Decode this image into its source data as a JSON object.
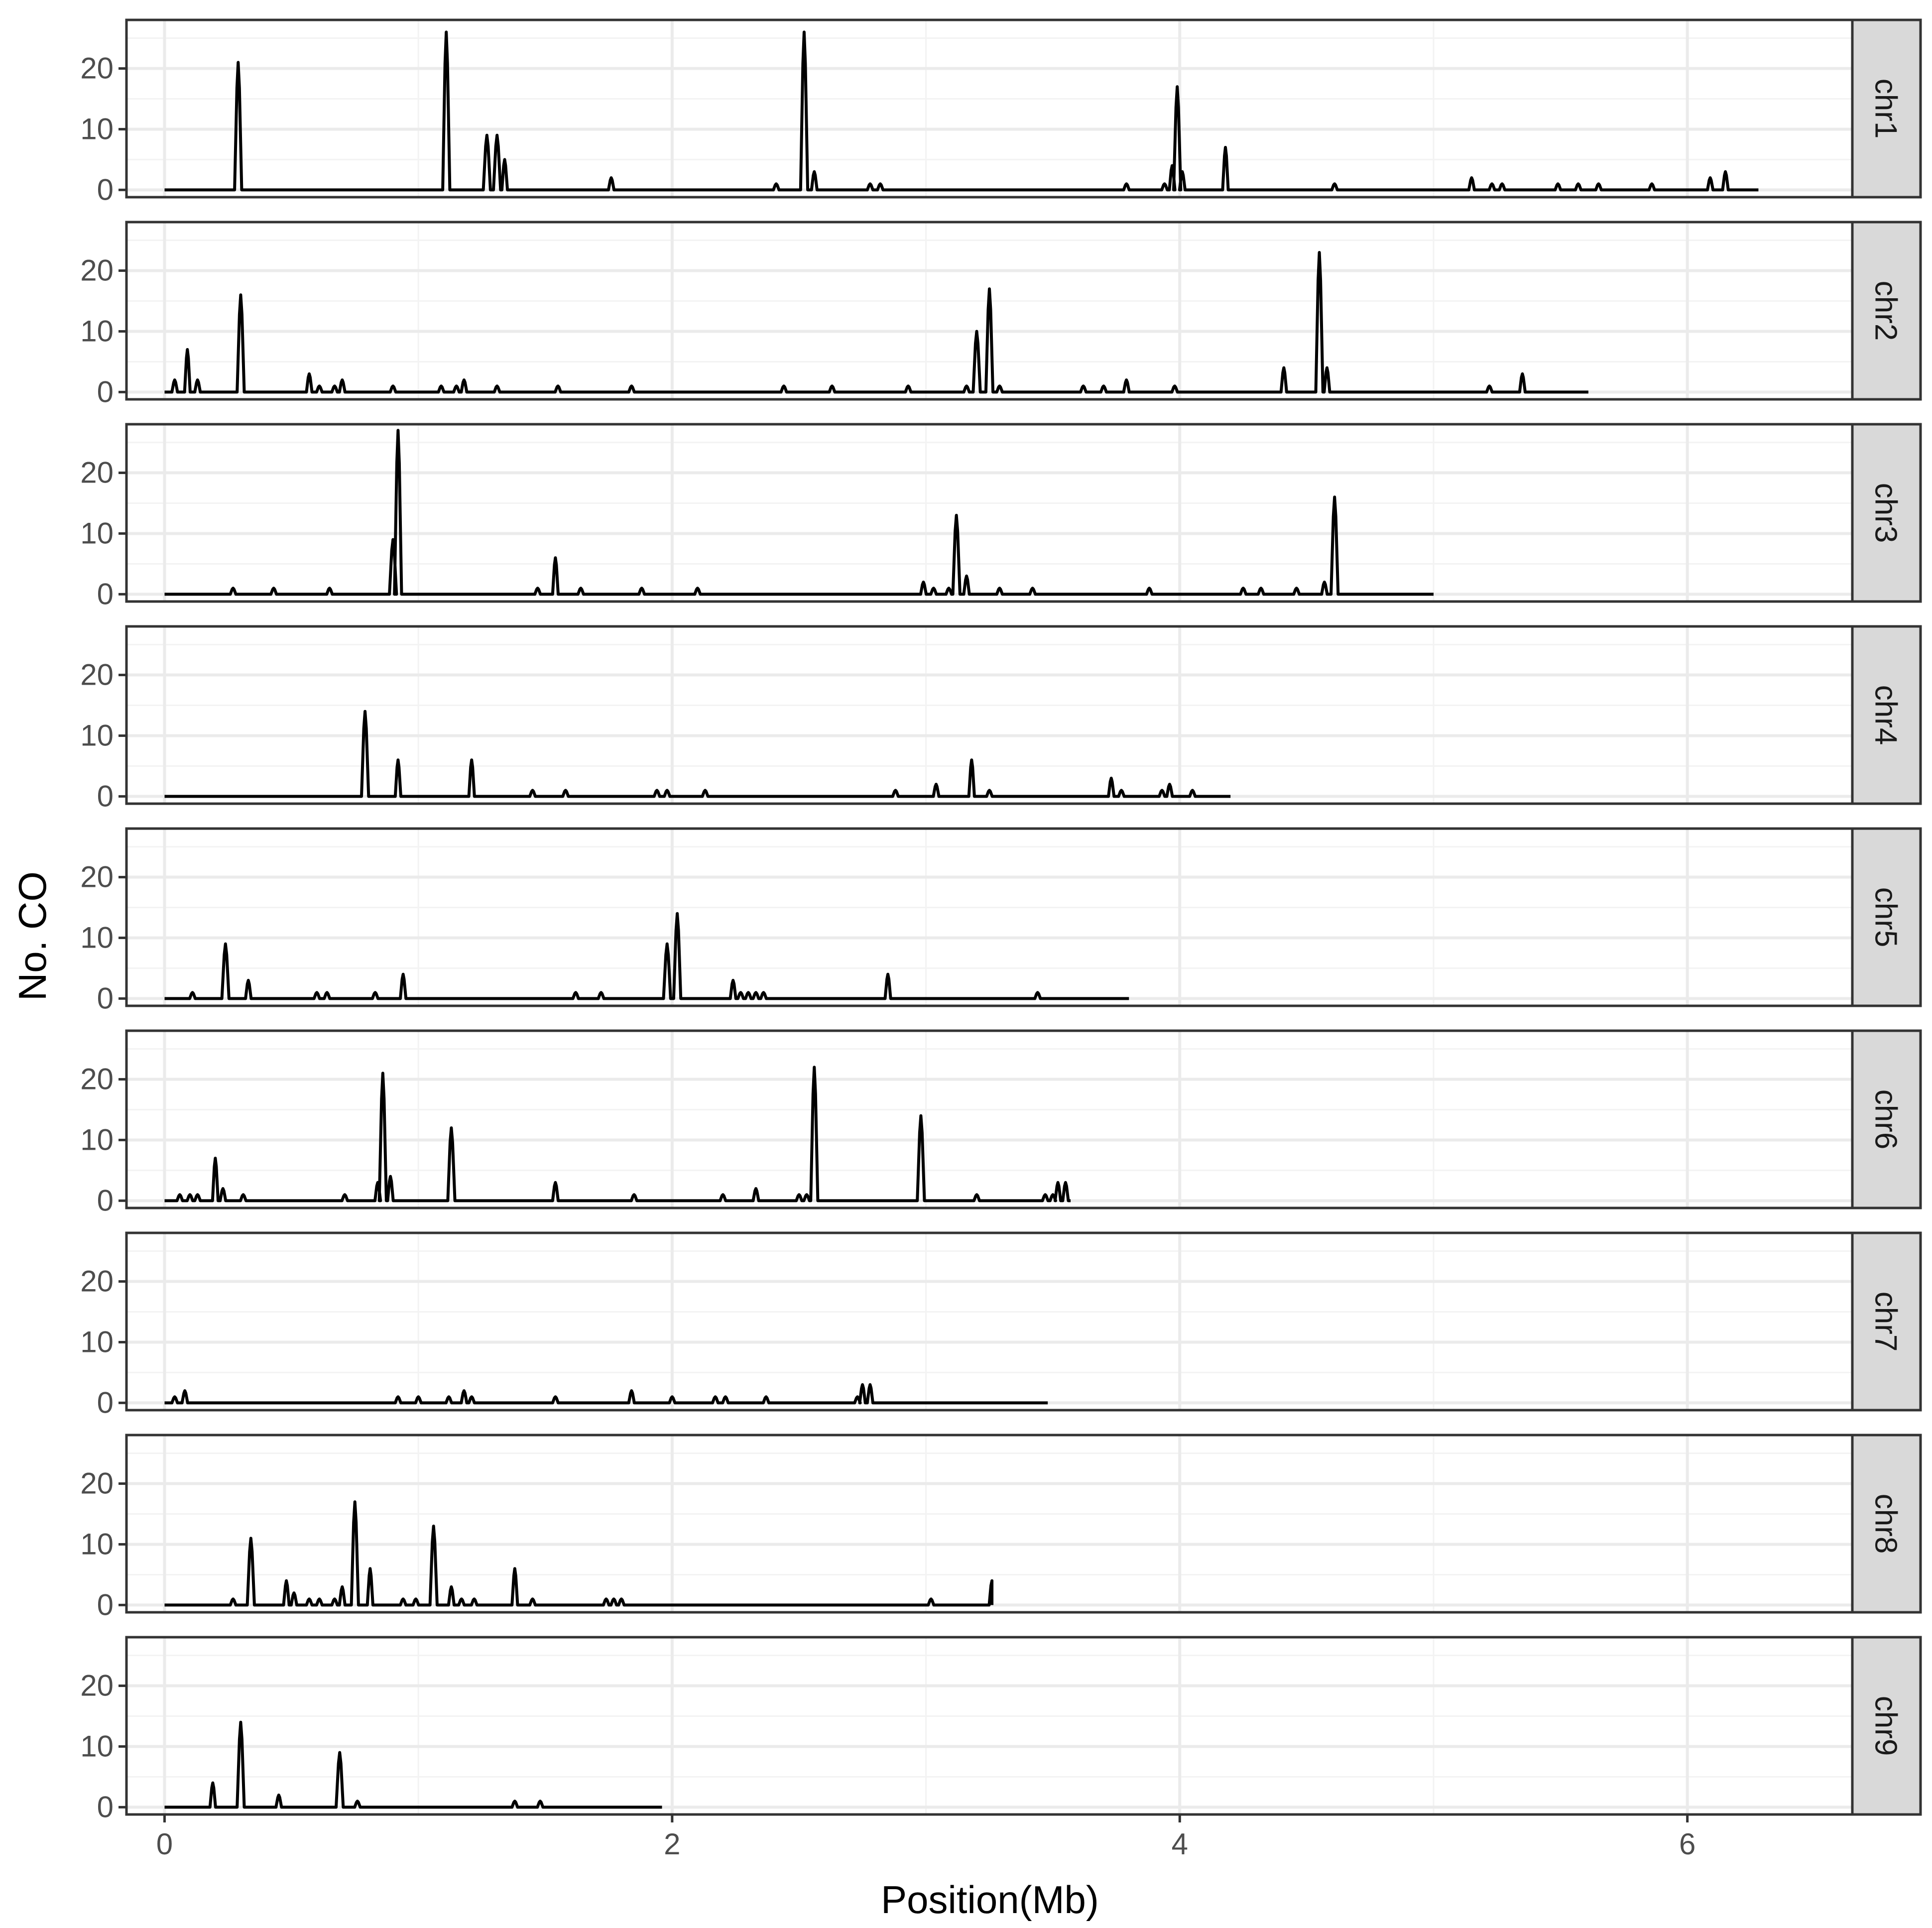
{
  "chart_data": {
    "type": "line",
    "facet_by": "chromosome",
    "xlabel": "Position(Mb)",
    "ylabel": "No. CO",
    "xlim": [
      -0.15,
      6.65
    ],
    "ylim": [
      -1.2,
      28
    ],
    "x_ticks": [
      0,
      2,
      4,
      6
    ],
    "y_ticks": [
      0,
      10,
      20
    ],
    "grid": true,
    "line_color": "#000000",
    "strip_color": "#d9d9d9",
    "panels": [
      {
        "strip": "chr1",
        "length": 6.28,
        "peaks": [
          [
            0.29,
            21
          ],
          [
            1.11,
            26
          ],
          [
            1.27,
            9
          ],
          [
            1.31,
            9
          ],
          [
            1.34,
            5
          ],
          [
            1.76,
            2
          ],
          [
            2.41,
            1
          ],
          [
            2.52,
            26
          ],
          [
            2.56,
            3
          ],
          [
            2.78,
            1
          ],
          [
            2.82,
            1
          ],
          [
            3.79,
            1
          ],
          [
            3.94,
            1
          ],
          [
            3.97,
            4
          ],
          [
            3.99,
            17
          ],
          [
            4.01,
            3
          ],
          [
            4.18,
            7
          ],
          [
            4.61,
            1
          ],
          [
            5.15,
            2
          ],
          [
            5.23,
            1
          ],
          [
            5.27,
            1
          ],
          [
            5.49,
            1
          ],
          [
            5.57,
            1
          ],
          [
            5.65,
            1
          ],
          [
            5.86,
            1
          ],
          [
            6.09,
            2
          ],
          [
            6.15,
            3
          ]
        ]
      },
      {
        "strip": "chr2",
        "length": 5.61,
        "peaks": [
          [
            0.04,
            2
          ],
          [
            0.09,
            7
          ],
          [
            0.13,
            2
          ],
          [
            0.3,
            16
          ],
          [
            0.57,
            3
          ],
          [
            0.61,
            1
          ],
          [
            0.67,
            1
          ],
          [
            0.7,
            2
          ],
          [
            0.9,
            1
          ],
          [
            1.09,
            1
          ],
          [
            1.15,
            1
          ],
          [
            1.18,
            2
          ],
          [
            1.31,
            1
          ],
          [
            1.55,
            1
          ],
          [
            1.84,
            1
          ],
          [
            2.44,
            1
          ],
          [
            2.63,
            1
          ],
          [
            2.93,
            1
          ],
          [
            3.16,
            1
          ],
          [
            3.2,
            10
          ],
          [
            3.25,
            17
          ],
          [
            3.29,
            1
          ],
          [
            3.62,
            1
          ],
          [
            3.7,
            1
          ],
          [
            3.79,
            2
          ],
          [
            3.98,
            1
          ],
          [
            4.41,
            4
          ],
          [
            4.55,
            23
          ],
          [
            4.58,
            4
          ],
          [
            5.22,
            1
          ],
          [
            5.35,
            3
          ]
        ]
      },
      {
        "strip": "chr3",
        "length": 5.0,
        "peaks": [
          [
            0.27,
            1
          ],
          [
            0.43,
            1
          ],
          [
            0.65,
            1
          ],
          [
            0.9,
            9
          ],
          [
            0.92,
            27
          ],
          [
            1.47,
            1
          ],
          [
            1.54,
            6
          ],
          [
            1.64,
            1
          ],
          [
            1.88,
            1
          ],
          [
            2.1,
            1
          ],
          [
            2.99,
            2
          ],
          [
            3.03,
            1
          ],
          [
            3.09,
            1
          ],
          [
            3.12,
            13
          ],
          [
            3.16,
            3
          ],
          [
            3.29,
            1
          ],
          [
            3.42,
            1
          ],
          [
            3.88,
            1
          ],
          [
            4.25,
            1
          ],
          [
            4.32,
            1
          ],
          [
            4.46,
            1
          ],
          [
            4.57,
            2
          ],
          [
            4.61,
            16
          ]
        ]
      },
      {
        "strip": "chr4",
        "length": 4.2,
        "peaks": [
          [
            0.79,
            14
          ],
          [
            0.92,
            6
          ],
          [
            1.21,
            6
          ],
          [
            1.45,
            1
          ],
          [
            1.58,
            1
          ],
          [
            1.94,
            1
          ],
          [
            1.98,
            1
          ],
          [
            2.13,
            1
          ],
          [
            2.88,
            1
          ],
          [
            3.04,
            2
          ],
          [
            3.18,
            6
          ],
          [
            3.25,
            1
          ],
          [
            3.73,
            3
          ],
          [
            3.77,
            1
          ],
          [
            3.93,
            1
          ],
          [
            3.96,
            2
          ],
          [
            4.05,
            1
          ]
        ]
      },
      {
        "strip": "chr5",
        "length": 3.8,
        "peaks": [
          [
            0.11,
            1
          ],
          [
            0.24,
            9
          ],
          [
            0.33,
            3
          ],
          [
            0.6,
            1
          ],
          [
            0.64,
            1
          ],
          [
            0.83,
            1
          ],
          [
            0.94,
            4
          ],
          [
            1.62,
            1
          ],
          [
            1.72,
            1
          ],
          [
            1.98,
            9
          ],
          [
            2.02,
            14
          ],
          [
            2.24,
            3
          ],
          [
            2.27,
            1
          ],
          [
            2.3,
            1
          ],
          [
            2.33,
            1
          ],
          [
            2.36,
            1
          ],
          [
            2.85,
            4
          ],
          [
            3.44,
            1
          ]
        ]
      },
      {
        "strip": "chr6",
        "length": 3.57,
        "peaks": [
          [
            0.06,
            1
          ],
          [
            0.1,
            1
          ],
          [
            0.13,
            1
          ],
          [
            0.2,
            7
          ],
          [
            0.23,
            2
          ],
          [
            0.31,
            1
          ],
          [
            0.71,
            1
          ],
          [
            0.84,
            3
          ],
          [
            0.86,
            21
          ],
          [
            0.89,
            4
          ],
          [
            1.13,
            12
          ],
          [
            1.54,
            3
          ],
          [
            1.85,
            1
          ],
          [
            2.2,
            1
          ],
          [
            2.33,
            2
          ],
          [
            2.5,
            1
          ],
          [
            2.53,
            1
          ],
          [
            2.56,
            22
          ],
          [
            2.98,
            14
          ],
          [
            3.2,
            1
          ],
          [
            3.47,
            1
          ],
          [
            3.5,
            1
          ],
          [
            3.52,
            3
          ],
          [
            3.55,
            3
          ]
        ]
      },
      {
        "strip": "chr7",
        "length": 3.48,
        "peaks": [
          [
            0.04,
            1
          ],
          [
            0.08,
            2
          ],
          [
            0.92,
            1
          ],
          [
            1.0,
            1
          ],
          [
            1.12,
            1
          ],
          [
            1.18,
            2
          ],
          [
            1.21,
            1
          ],
          [
            1.54,
            1
          ],
          [
            1.84,
            2
          ],
          [
            2.0,
            1
          ],
          [
            2.17,
            1
          ],
          [
            2.21,
            1
          ],
          [
            2.37,
            1
          ],
          [
            2.73,
            1
          ],
          [
            2.75,
            3
          ],
          [
            2.78,
            3
          ]
        ]
      },
      {
        "strip": "chr8",
        "length": 3.26,
        "peaks": [
          [
            0.27,
            1
          ],
          [
            0.34,
            11
          ],
          [
            0.48,
            4
          ],
          [
            0.51,
            2
          ],
          [
            0.57,
            1
          ],
          [
            0.61,
            1
          ],
          [
            0.67,
            1
          ],
          [
            0.7,
            3
          ],
          [
            0.75,
            17
          ],
          [
            0.81,
            6
          ],
          [
            0.94,
            1
          ],
          [
            0.99,
            1
          ],
          [
            1.06,
            13
          ],
          [
            1.13,
            3
          ],
          [
            1.17,
            1
          ],
          [
            1.22,
            1
          ],
          [
            1.38,
            6
          ],
          [
            1.45,
            1
          ],
          [
            1.74,
            1
          ],
          [
            1.77,
            1
          ],
          [
            1.8,
            1
          ],
          [
            3.02,
            1
          ],
          [
            3.26,
            4
          ]
        ]
      },
      {
        "strip": "chr9",
        "length": 1.96,
        "peaks": [
          [
            0.19,
            4
          ],
          [
            0.3,
            14
          ],
          [
            0.45,
            2
          ],
          [
            0.69,
            9
          ],
          [
            0.76,
            1
          ],
          [
            1.38,
            1
          ],
          [
            1.48,
            1
          ]
        ]
      }
    ]
  }
}
